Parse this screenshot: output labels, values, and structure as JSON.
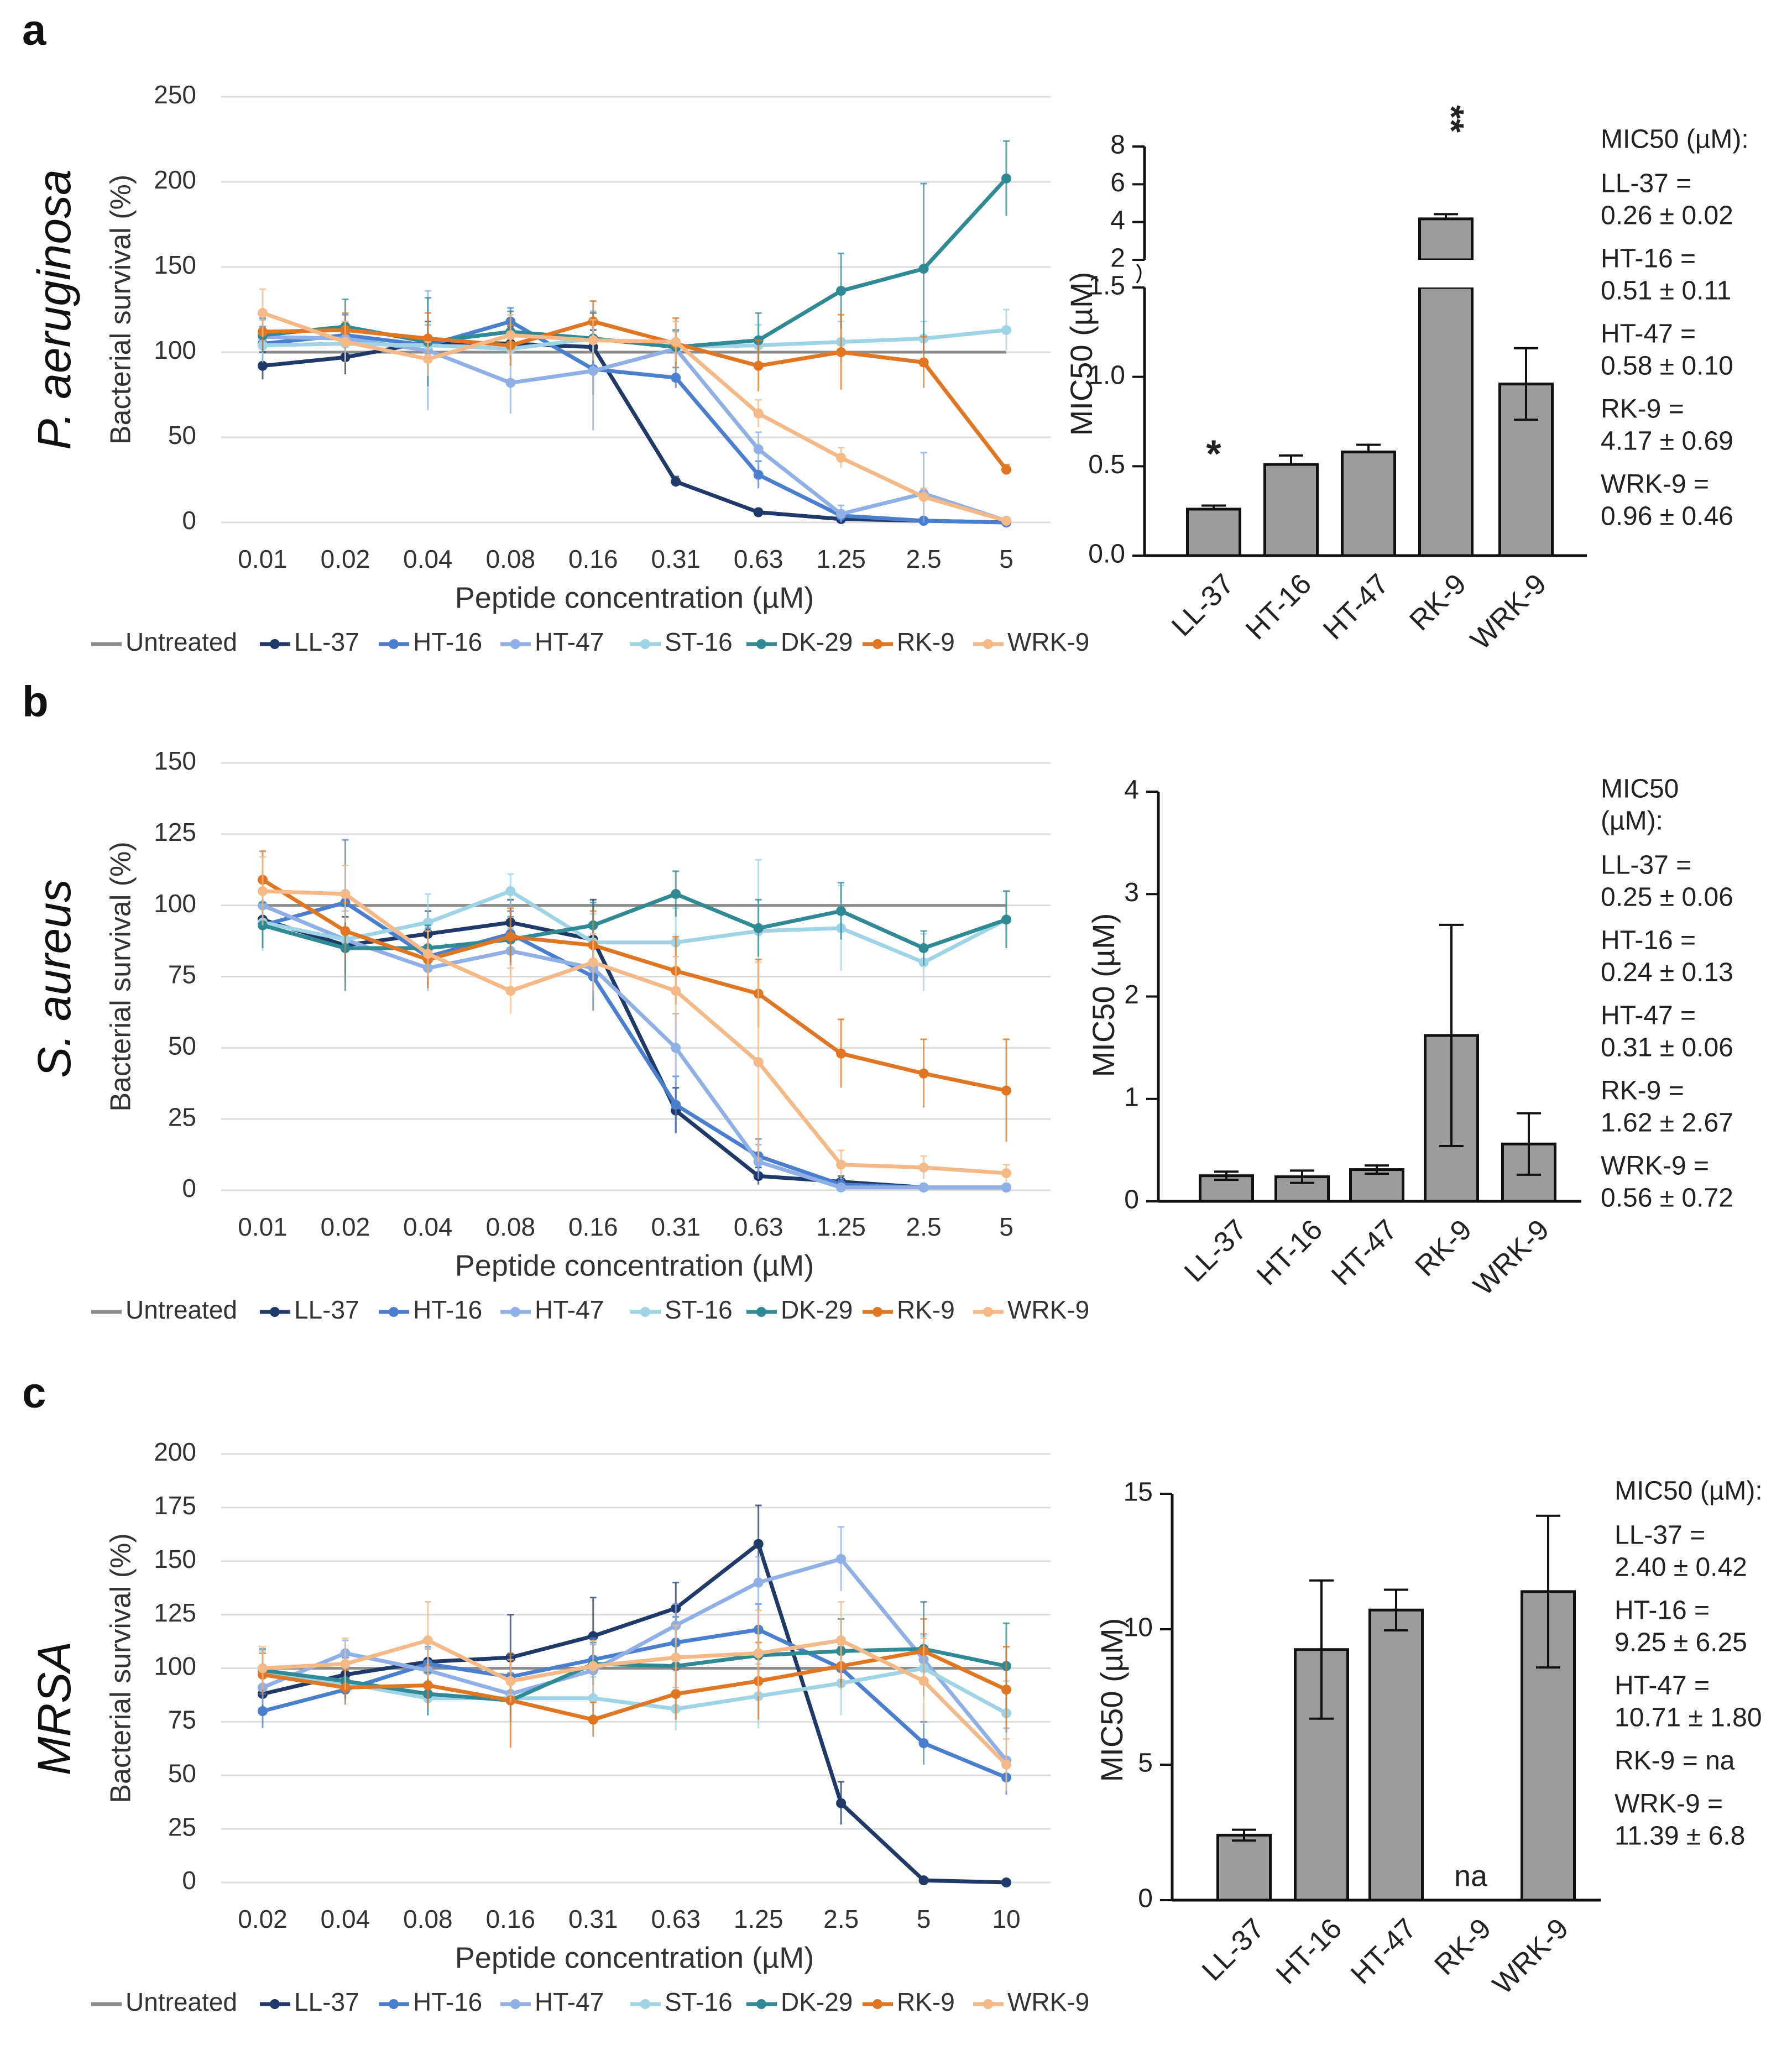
{
  "colors": {
    "Untreated": "#8c8c8c",
    "LL-37": "#1f3a68",
    "HT-16": "#4a7fd0",
    "HT-47": "#8fb0e6",
    "ST-16": "#9fd4e6",
    "DK-29": "#2f8a96",
    "RK-9": "#e07622",
    "WRK-9": "#f4b987",
    "bar": "#9c9c9c"
  },
  "legend": [
    "Untreated",
    "LL-37",
    "HT-16",
    "HT-47",
    "ST-16",
    "DK-29",
    "RK-9",
    "WRK-9"
  ],
  "chart_data": [
    {
      "panel": "a",
      "organism": "P. aeruginosa",
      "type": "line",
      "xlabel": "Peptide concentration (µM)",
      "ylabel": "Bacterial survival (%)",
      "categories": [
        "0.01",
        "0.02",
        "0.04",
        "0.08",
        "0.16",
        "0.31",
        "0.63",
        "1.25",
        "2.5",
        "5"
      ],
      "ylim": [
        0,
        250
      ],
      "yticks": [
        0,
        50,
        100,
        150,
        200,
        250
      ],
      "series": [
        {
          "name": "Untreated",
          "values": [
            100,
            100,
            100,
            100,
            100,
            100,
            100,
            100,
            100,
            100
          ],
          "errors": [
            0,
            0,
            0,
            0,
            0,
            0,
            0,
            0,
            0,
            0
          ]
        },
        {
          "name": "LL-37",
          "values": [
            92,
            97,
            106,
            105,
            103,
            24,
            6,
            2,
            1,
            0
          ],
          "errors": [
            8,
            10,
            12,
            10,
            10,
            3,
            2,
            1,
            1,
            0
          ]
        },
        {
          "name": "HT-16",
          "values": [
            105,
            110,
            104,
            118,
            90,
            85,
            28,
            4,
            1,
            0
          ],
          "errors": [
            10,
            12,
            12,
            8,
            15,
            6,
            8,
            3,
            1,
            0
          ]
        },
        {
          "name": "HT-47",
          "values": [
            109,
            108,
            101,
            82,
            89,
            102,
            43,
            5,
            17,
            1
          ],
          "errors": [
            10,
            10,
            35,
            18,
            35,
            10,
            10,
            5,
            24,
            1
          ]
        },
        {
          "name": "ST-16",
          "values": [
            104,
            105,
            104,
            102,
            108,
            103,
            104,
            106,
            108,
            113
          ],
          "errors": [
            10,
            10,
            12,
            10,
            15,
            10,
            12,
            12,
            10,
            12
          ]
        },
        {
          "name": "DK-29",
          "values": [
            110,
            115,
            106,
            112,
            108,
            103,
            107,
            136,
            149,
            202
          ],
          "errors": [
            10,
            16,
            26,
            12,
            15,
            10,
            16,
            22,
            50,
            22
          ]
        },
        {
          "name": "RK-9",
          "values": [
            112,
            113,
            108,
            104,
            118,
            105,
            92,
            100,
            94,
            31
          ],
          "errors": [
            10,
            10,
            15,
            12,
            12,
            15,
            15,
            22,
            15,
            3
          ]
        },
        {
          "name": "WRK-9",
          "values": [
            123,
            106,
            96,
            110,
            107,
            106,
            64,
            38,
            15,
            1
          ],
          "errors": [
            14,
            12,
            10,
            12,
            12,
            12,
            8,
            6,
            5,
            1
          ]
        }
      ]
    },
    {
      "panel": "a",
      "type": "bar",
      "ylabel": "MIC50 (µM)",
      "categories": [
        "LL-37",
        "HT-16",
        "HT-47",
        "RK-9",
        "WRK-9"
      ],
      "values": [
        0.26,
        0.51,
        0.58,
        4.17,
        0.96
      ],
      "errors": [
        0.02,
        0.05,
        0.04,
        0.25,
        0.2
      ],
      "ylim": [
        0,
        8
      ],
      "axis_break": [
        1.5,
        2
      ],
      "yticks_lower": [
        "0.0",
        "0.5",
        "1.0",
        "1.5"
      ],
      "yticks_upper": [
        "2",
        "4",
        "6",
        "8"
      ],
      "significance": [
        "*",
        "",
        "",
        "**",
        ""
      ],
      "annotation_title": "MIC50 (µM):",
      "annotations": [
        {
          "label": "LL-37 =",
          "value": "0.26 ± 0.02"
        },
        {
          "label": "HT-16 =",
          "value": "0.51 ± 0.11"
        },
        {
          "label": "HT-47 =",
          "value": "0.58 ± 0.10"
        },
        {
          "label": "RK-9 =",
          "value": "4.17 ± 0.69"
        },
        {
          "label": "WRK-9 =",
          "value": "0.96 ± 0.46"
        }
      ]
    },
    {
      "panel": "b",
      "organism": "S. aureus",
      "type": "line",
      "xlabel": "Peptide concentration (µM)",
      "ylabel": "Bacterial survival (%)",
      "categories": [
        "0.01",
        "0.02",
        "0.04",
        "0.08",
        "0.16",
        "0.31",
        "0.63",
        "1.25",
        "2.5",
        "5"
      ],
      "ylim": [
        0,
        150
      ],
      "yticks": [
        0,
        25,
        50,
        75,
        100,
        125,
        150
      ],
      "series": [
        {
          "name": "Untreated",
          "values": [
            100,
            100,
            100,
            100,
            100,
            100,
            100,
            100,
            100,
            100
          ],
          "errors": [
            0,
            0,
            0,
            0,
            0,
            0,
            0,
            0,
            0,
            0
          ]
        },
        {
          "name": "LL-37",
          "values": [
            95,
            86,
            90,
            94,
            88,
            28,
            5,
            3,
            1,
            1
          ],
          "errors": [
            6,
            10,
            8,
            8,
            14,
            8,
            3,
            2,
            1,
            1
          ]
        },
        {
          "name": "HT-16",
          "values": [
            93,
            101,
            82,
            90,
            75,
            30,
            12,
            2,
            1,
            1
          ],
          "errors": [
            8,
            22,
            10,
            8,
            12,
            10,
            6,
            2,
            1,
            1
          ]
        },
        {
          "name": "HT-47",
          "values": [
            100,
            88,
            78,
            84,
            78,
            50,
            10,
            1,
            1,
            1
          ],
          "errors": [
            10,
            10,
            8,
            8,
            10,
            12,
            6,
            1,
            1,
            1
          ]
        },
        {
          "name": "ST-16",
          "values": [
            94,
            88,
            94,
            105,
            87,
            87,
            91,
            92,
            80,
            95
          ],
          "errors": [
            10,
            15,
            10,
            6,
            10,
            12,
            25,
            15,
            10,
            10
          ]
        },
        {
          "name": "DK-29",
          "values": [
            93,
            85,
            85,
            88,
            93,
            104,
            92,
            98,
            85,
            95
          ],
          "errors": [
            8,
            15,
            8,
            8,
            8,
            8,
            10,
            10,
            6,
            10
          ]
        },
        {
          "name": "RK-9",
          "values": [
            109,
            91,
            81,
            89,
            86,
            77,
            69,
            48,
            41,
            35
          ],
          "errors": [
            10,
            10,
            10,
            10,
            12,
            12,
            12,
            12,
            12,
            18
          ]
        },
        {
          "name": "WRK-9",
          "values": [
            105,
            104,
            83,
            70,
            80,
            70,
            45,
            9,
            8,
            6
          ],
          "errors": [
            12,
            10,
            8,
            8,
            10,
            12,
            35,
            5,
            4,
            3
          ]
        }
      ]
    },
    {
      "panel": "b",
      "type": "bar",
      "ylabel": "MIC50 (µM)",
      "categories": [
        "LL-37",
        "HT-16",
        "HT-47",
        "RK-9",
        "WRK-9"
      ],
      "values": [
        0.25,
        0.24,
        0.31,
        1.62,
        0.56
      ],
      "errors": [
        0.04,
        0.06,
        0.04,
        1.08,
        0.3
      ],
      "ylim": [
        0,
        4
      ],
      "yticks": [
        "0",
        "1",
        "2",
        "3",
        "4"
      ],
      "annotation_title": "MIC50",
      "annotation_title2": "(µM):",
      "annotations": [
        {
          "label": "LL-37 =",
          "value": "0.25 ± 0.06"
        },
        {
          "label": "HT-16 =",
          "value": "0.24 ± 0.13"
        },
        {
          "label": "HT-47 =",
          "value": "0.31 ± 0.06"
        },
        {
          "label": "RK-9 =",
          "value": "1.62 ± 2.67"
        },
        {
          "label": "WRK-9 =",
          "value": "0.56 ± 0.72"
        }
      ]
    },
    {
      "panel": "c",
      "organism": "MRSA",
      "type": "line",
      "xlabel": "Peptide concentration (µM)",
      "ylabel": "Bacterial survival (%)",
      "categories": [
        "0.02",
        "0.04",
        "0.08",
        "0.16",
        "0.31",
        "0.63",
        "1.25",
        "2.5",
        "5",
        "10"
      ],
      "ylim": [
        0,
        200
      ],
      "yticks": [
        0,
        25,
        50,
        75,
        100,
        125,
        150,
        175,
        200
      ],
      "series": [
        {
          "name": "Untreated",
          "values": [
            100,
            100,
            100,
            100,
            100,
            100,
            100,
            100,
            100,
            100
          ],
          "errors": [
            0,
            0,
            0,
            0,
            0,
            0,
            0,
            0,
            0,
            0
          ]
        },
        {
          "name": "LL-37",
          "values": [
            88,
            97,
            103,
            105,
            115,
            128,
            158,
            37,
            1,
            0
          ],
          "errors": [
            8,
            8,
            10,
            20,
            18,
            12,
            18,
            10,
            1,
            0
          ]
        },
        {
          "name": "HT-16",
          "values": [
            80,
            90,
            102,
            96,
            104,
            112,
            118,
            100,
            65,
            49
          ],
          "errors": [
            8,
            5,
            8,
            10,
            10,
            12,
            12,
            10,
            10,
            8
          ]
        },
        {
          "name": "HT-47",
          "values": [
            91,
            107,
            99,
            88,
            99,
            120,
            140,
            151,
            104,
            57
          ],
          "errors": [
            8,
            6,
            10,
            10,
            12,
            10,
            12,
            15,
            12,
            15
          ]
        },
        {
          "name": "ST-16",
          "values": [
            98,
            93,
            86,
            86,
            86,
            81,
            87,
            93,
            100,
            79
          ],
          "errors": [
            10,
            10,
            8,
            8,
            10,
            10,
            15,
            15,
            15,
            15
          ]
        },
        {
          "name": "DK-29",
          "values": [
            99,
            94,
            88,
            85,
            102,
            101,
            106,
            108,
            109,
            101
          ],
          "errors": [
            10,
            8,
            10,
            10,
            10,
            10,
            12,
            15,
            22,
            20
          ]
        },
        {
          "name": "RK-9",
          "values": [
            97,
            91,
            92,
            85,
            76,
            88,
            94,
            101,
            108,
            90
          ],
          "errors": [
            10,
            8,
            10,
            22,
            8,
            12,
            18,
            10,
            15,
            20
          ]
        },
        {
          "name": "WRK-9",
          "values": [
            100,
            102,
            113,
            94,
            101,
            105,
            107,
            113,
            94,
            55
          ],
          "errors": [
            10,
            12,
            18,
            10,
            12,
            15,
            20,
            18,
            20,
            12
          ]
        }
      ]
    },
    {
      "panel": "c",
      "type": "bar",
      "ylabel": "MIC50 (µM)",
      "categories": [
        "LL-37",
        "HT-16",
        "HT-47",
        "RK-9",
        "WRK-9"
      ],
      "values": [
        2.4,
        9.25,
        10.71,
        null,
        11.39
      ],
      "errors": [
        0.2,
        2.55,
        0.75,
        0,
        2.8
      ],
      "ylim": [
        0,
        15
      ],
      "yticks": [
        "0",
        "5",
        "10",
        "15"
      ],
      "na_label": "na",
      "annotation_title": "MIC50 (µM):",
      "annotations": [
        {
          "label": "LL-37 =",
          "value": "2.40 ± 0.42"
        },
        {
          "label": "HT-16 =",
          "value": "9.25 ± 6.25"
        },
        {
          "label": "HT-47 =",
          "value": "10.71 ± 1.80"
        },
        {
          "label": "RK-9 = na",
          "value": ""
        },
        {
          "label": "WRK-9 =",
          "value": "11.39 ± 6.8"
        }
      ]
    }
  ]
}
